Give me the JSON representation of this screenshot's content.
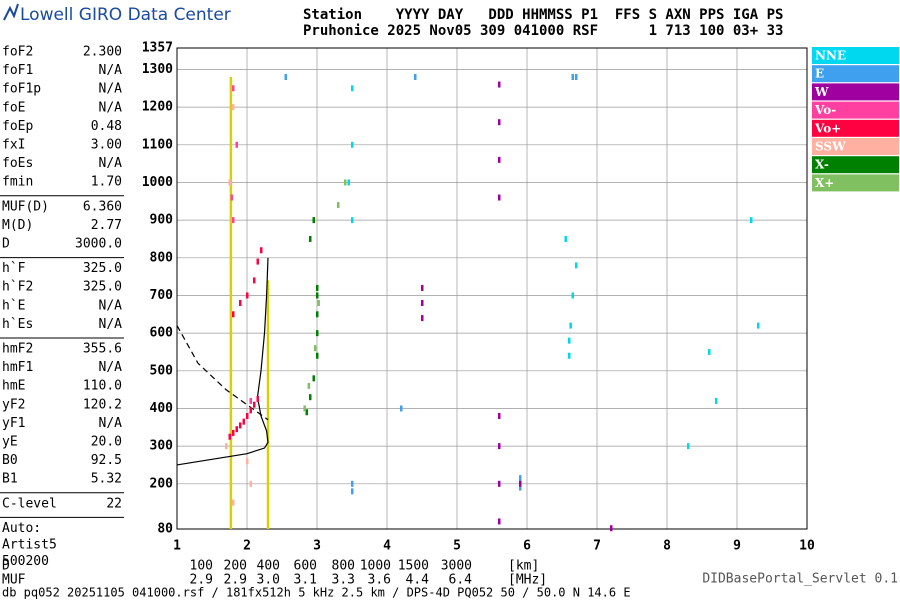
{
  "header": {
    "logo": "Lowell GIRO Data Center",
    "station_head": "Station    YYYY DAY   DDD HHMMSS P1  FFS S AXN PPS IGA PS",
    "station_row": "Pruhonice 2025 Nov05 309 041000 RSF      1 713 100 03+ 33"
  },
  "parameters": [
    [
      [
        "foF2",
        "2.300"
      ],
      [
        "foF1",
        "N/A"
      ],
      [
        "foF1p",
        "N/A"
      ],
      [
        "foE",
        "N/A"
      ],
      [
        "foEp",
        "0.48"
      ],
      [
        "fxI",
        "3.00"
      ],
      [
        "foEs",
        "N/A"
      ],
      [
        "fmin",
        "1.70"
      ]
    ],
    [
      [
        "MUF(D)",
        "6.360"
      ],
      [
        "M(D)",
        "2.77"
      ],
      [
        "D",
        "3000.0"
      ]
    ],
    [
      [
        "h`F",
        "325.0"
      ],
      [
        "h`F2",
        "325.0"
      ],
      [
        "h`E",
        "N/A"
      ],
      [
        "h`Es",
        "N/A"
      ]
    ],
    [
      [
        "hmF2",
        "355.6"
      ],
      [
        "hmF1",
        "N/A"
      ],
      [
        "hmE",
        "110.0"
      ],
      [
        "yF2",
        "120.2"
      ],
      [
        "yF1",
        "N/A"
      ],
      [
        "yE",
        "20.0"
      ],
      [
        "B0",
        "92.5"
      ],
      [
        "B1",
        "5.32"
      ]
    ],
    [
      [
        "C-level",
        "22"
      ]
    ]
  ],
  "auto": [
    "Auto:",
    "Artist5",
    "500200"
  ],
  "muf_table": {
    "d_label": "D",
    "d": [
      "100",
      "200",
      "400",
      "600",
      "800",
      "1000",
      "1500",
      "3000"
    ],
    "d_unit": "[km]",
    "muf_label": "MUF",
    "muf": [
      "2.9",
      "2.9",
      "3.0",
      "3.1",
      "3.3",
      "3.6",
      "4.4",
      "6.4"
    ],
    "muf_unit": "[MHz]"
  },
  "servlet": "DIDBasePortal_Servlet 0.1",
  "footer": "db pq052 20251105 041000.rsf / 181fx512h 5 kHz 2.5 km / DPS-4D PQ052 50 / 50.0 N 14.6 E",
  "chart_data": {
    "type": "scatter",
    "xlim": [
      1,
      10
    ],
    "xticks": [
      1,
      2,
      3,
      4,
      5,
      6,
      7,
      8,
      9,
      10
    ],
    "ylim": [
      80,
      1357
    ],
    "yticks": [
      80,
      200,
      300,
      400,
      500,
      600,
      700,
      800,
      900,
      1000,
      1100,
      1200,
      1300,
      1357
    ],
    "grid": true,
    "series": [
      {
        "name": "NNE",
        "color": "#00d8f0",
        "x": [
          6.6,
          6.6,
          6.62,
          6.65,
          6.7,
          6.55,
          3.5,
          3.5,
          3.5,
          3.45,
          8.3,
          8.6,
          8.7,
          9.2,
          9.3
        ],
        "y": [
          540,
          580,
          620,
          700,
          780,
          850,
          1250,
          1100,
          900,
          1000,
          300,
          550,
          420,
          900,
          620
        ]
      },
      {
        "name": "E",
        "color": "#40a0f0",
        "x": [
          5.9,
          5.9,
          3.5,
          3.5,
          2.55,
          4.4,
          6.7,
          6.65,
          4.2
        ],
        "y": [
          190,
          215,
          200,
          180,
          1280,
          1280,
          1280,
          1280,
          400
        ]
      },
      {
        "name": "W",
        "color": "#a000a0",
        "x": [
          5.6,
          5.6,
          5.6,
          5.6,
          5.6,
          5.6,
          5.6,
          5.6,
          4.5,
          4.5,
          4.5,
          7.2,
          5.9
        ],
        "y": [
          1260,
          1160,
          1060,
          960,
          380,
          300,
          200,
          100,
          640,
          680,
          720,
          82,
          200
        ]
      },
      {
        "name": "Vo-",
        "color": "#ff40a0",
        "x": [
          1.8,
          1.85,
          1.8,
          2.0,
          1.78,
          2.05
        ],
        "y": [
          900,
          1100,
          1250,
          380,
          960,
          420
        ]
      },
      {
        "name": "Vo+",
        "color": "#ff0040",
        "x": [
          1.75,
          1.8,
          1.85,
          1.9,
          1.95,
          2.0,
          2.05,
          2.1,
          2.15,
          1.8,
          1.9,
          2.0,
          2.1,
          2.15,
          2.2
        ],
        "y": [
          325,
          335,
          345,
          355,
          365,
          380,
          395,
          410,
          425,
          650,
          680,
          700,
          740,
          790,
          820
        ]
      },
      {
        "name": "SSW",
        "color": "#ffb0a0",
        "x": [
          1.75,
          1.8,
          2.05,
          1.8,
          1.7,
          2.0
        ],
        "y": [
          1000,
          1200,
          200,
          150,
          300,
          260
        ]
      },
      {
        "name": "X-",
        "color": "#008000",
        "x": [
          2.85,
          2.9,
          2.95,
          3.0,
          3.0,
          3.0,
          3.0,
          3.0,
          2.9,
          2.95
        ],
        "y": [
          390,
          430,
          480,
          540,
          600,
          650,
          700,
          720,
          850,
          900
        ]
      },
      {
        "name": "X+",
        "color": "#80c060",
        "x": [
          2.82,
          2.88,
          2.97,
          3.02,
          3.4,
          3.3
        ],
        "y": [
          400,
          460,
          560,
          680,
          1000,
          940
        ]
      }
    ],
    "lines": [
      {
        "color": "#d8d000",
        "x": [
          1.77,
          1.77
        ],
        "y": [
          80,
          1280
        ]
      },
      {
        "color": "#d8d000",
        "x": [
          2.3,
          2.3
        ],
        "y": [
          80,
          740
        ]
      },
      {
        "color": "#000000",
        "x": [
          2.3,
          2.28,
          2.25,
          2.2,
          2.15,
          2.2,
          2.28,
          2.3,
          2.25,
          2.0,
          1.5,
          1.0
        ],
        "y": [
          800,
          700,
          600,
          500,
          430,
          380,
          340,
          310,
          295,
          280,
          265,
          250
        ]
      },
      {
        "color": "#000000",
        "dash": true,
        "x": [
          1.0,
          1.3,
          1.7,
          2.0,
          2.3
        ],
        "y": [
          620,
          520,
          450,
          410,
          370
        ]
      }
    ]
  }
}
